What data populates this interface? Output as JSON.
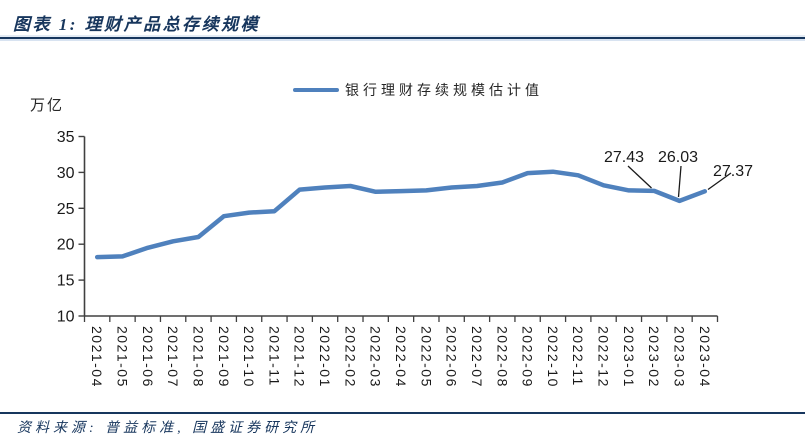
{
  "header": {
    "title": "图表 1: 理财产品总存续规模"
  },
  "legend": {
    "label": "银行理财存续规模估计值"
  },
  "chart_data": {
    "type": "line",
    "title": "理财产品总存续规模",
    "unit_label": "万亿",
    "categories": [
      "2021-04",
      "2021-05",
      "2021-06",
      "2021-07",
      "2021-08",
      "2021-09",
      "2021-10",
      "2021-11",
      "2021-12",
      "2022-01",
      "2022-02",
      "2022-03",
      "2022-04",
      "2022-05",
      "2022-06",
      "2022-07",
      "2022-08",
      "2022-09",
      "2022-10",
      "2022-11",
      "2022-12",
      "2023-01",
      "2023-02",
      "2023-03",
      "2023-04"
    ],
    "series": [
      {
        "name": "银行理财存续规模估计值",
        "values": [
          18.2,
          18.3,
          19.5,
          20.4,
          21.0,
          23.9,
          24.4,
          24.6,
          27.6,
          27.9,
          28.1,
          27.3,
          27.4,
          27.5,
          27.9,
          28.1,
          28.6,
          29.9,
          30.1,
          29.6,
          28.2,
          27.5,
          27.43,
          26.03,
          27.37
        ]
      }
    ],
    "ylim": [
      10,
      35
    ],
    "yticks": [
      35,
      30,
      25,
      20,
      15,
      10
    ],
    "grid": false,
    "legend_position": "top-center",
    "line_color": "#4F81BD",
    "annotations": [
      {
        "text": "27.43",
        "category": "2023-02",
        "value": 27.43
      },
      {
        "text": "26.03",
        "category": "2023-03",
        "value": 26.03
      },
      {
        "text": "27.37",
        "category": "2023-04",
        "value": 27.37
      }
    ]
  },
  "footer": {
    "source": "资料来源: 普益标准, 国盛证券研究所"
  },
  "colors": {
    "navy": "#17365D",
    "line_blue": "#4F81BD",
    "axis": "#404040",
    "text": "#1a1a1a"
  }
}
